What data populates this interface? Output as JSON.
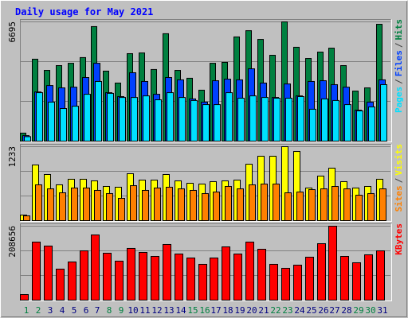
{
  "chart_data": [
    {
      "type": "bar",
      "title": "Daily usage for May 2021",
      "categories": [
        "1",
        "2",
        "3",
        "4",
        "5",
        "6",
        "7",
        "8",
        "9",
        "10",
        "11",
        "12",
        "13",
        "14",
        "15",
        "16",
        "17",
        "18",
        "19",
        "20",
        "21",
        "22",
        "23",
        "24",
        "25",
        "26",
        "27",
        "28",
        "29",
        "30",
        "31"
      ],
      "category_colors": [
        "#008040",
        "#008040",
        "#000080",
        "#000080",
        "#000080",
        "#000080",
        "#000080",
        "#008040",
        "#008040",
        "#000080",
        "#000080",
        "#000080",
        "#000080",
        "#000080",
        "#008040",
        "#008040",
        "#000080",
        "#000080",
        "#000080",
        "#000080",
        "#000080",
        "#008040",
        "#008040",
        "#000080",
        "#000080",
        "#000080",
        "#000080",
        "#000080",
        "#008040",
        "#008040",
        "#000080"
      ],
      "separator": "/",
      "ylim": [
        0,
        6695
      ],
      "yticks": [
        6695
      ],
      "series": [
        {
          "name": "Hits",
          "color": "#008040",
          "values": [
            450,
            4600,
            3970,
            4240,
            4370,
            4690,
            6430,
            3930,
            3260,
            4910,
            4950,
            4020,
            6030,
            3970,
            3530,
            2860,
            4370,
            4420,
            5850,
            6200,
            5710,
            4820,
            6695,
            5270,
            4640,
            5000,
            5220,
            4240,
            2810,
            2990,
            6560
          ]
        },
        {
          "name": "Files",
          "color": "#0040ff",
          "values": [
            310,
            2760,
            3120,
            2990,
            3030,
            3570,
            4370,
            2720,
            2500,
            3840,
            3350,
            2630,
            3570,
            3440,
            2370,
            2190,
            3390,
            3480,
            3440,
            4060,
            3260,
            2450,
            3210,
            2540,
            3350,
            3390,
            3170,
            3030,
            1740,
            2190,
            3440
          ]
        },
        {
          "name": "Pages",
          "color": "#00e0ff",
          "values": [
            250,
            2720,
            2190,
            1830,
            1960,
            2630,
            3350,
            2680,
            2450,
            2450,
            2540,
            2320,
            2720,
            2450,
            2280,
            2050,
            2050,
            2720,
            2410,
            2540,
            2450,
            2410,
            2410,
            2500,
            1790,
            2370,
            2280,
            2050,
            1700,
            1920,
            3170
          ]
        }
      ]
    },
    {
      "type": "bar",
      "separator": "/",
      "ylim": [
        0,
        1233
      ],
      "yticks": [
        1233
      ],
      "series": [
        {
          "name": "Visits",
          "color": "#ffff00",
          "values": [
            93,
            928,
            769,
            597,
            690,
            690,
            663,
            570,
            557,
            782,
            676,
            676,
            769,
            663,
            623,
            610,
            650,
            663,
            676,
            941,
            1074,
            1074,
            1233,
            1153,
            544,
            743,
            875,
            650,
            544,
            570,
            690
          ]
        },
        {
          "name": "Sites",
          "color": "#ff8000",
          "values": [
            80,
            597,
            530,
            464,
            544,
            544,
            504,
            451,
            371,
            583,
            504,
            544,
            557,
            530,
            504,
            451,
            477,
            570,
            530,
            597,
            610,
            610,
            464,
            477,
            517,
            530,
            570,
            530,
            424,
            451,
            530
          ]
        }
      ]
    },
    {
      "type": "bar",
      "ylim": [
        0,
        208656
      ],
      "yticks": [
        208656
      ],
      "series": [
        {
          "name": "KBytes",
          "color": "#ff0000",
          "values": [
            15700,
            163800,
            152600,
            87500,
            107700,
            139100,
            184000,
            132400,
            110000,
            145900,
            134600,
            123400,
            157100,
            130200,
            118900,
            101000,
            118900,
            150300,
            130200,
            163800,
            143600,
            101000,
            89800,
            98700,
            121200,
            159300,
            208656,
            123400,
            105500,
            127900,
            139100
          ]
        }
      ]
    }
  ]
}
